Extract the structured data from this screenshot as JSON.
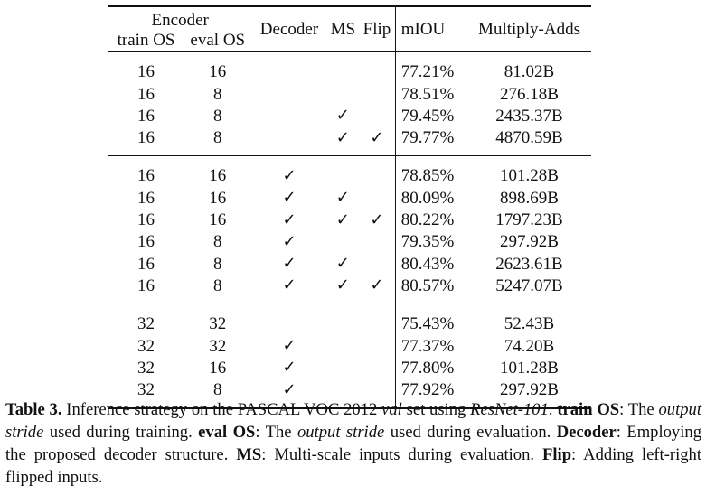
{
  "table": {
    "headers": {
      "encoder": "Encoder",
      "train_os": "train OS",
      "eval_os": "eval OS",
      "decoder": "Decoder",
      "ms": "MS",
      "flip": "Flip",
      "miou": "mIOU",
      "madds": "Multiply-Adds"
    },
    "check_symbol": "✓",
    "groups": [
      [
        {
          "train_os": "16",
          "eval_os": "16",
          "decoder": false,
          "ms": false,
          "flip": false,
          "miou": "77.21%",
          "madds": "81.02B"
        },
        {
          "train_os": "16",
          "eval_os": "8",
          "decoder": false,
          "ms": false,
          "flip": false,
          "miou": "78.51%",
          "madds": "276.18B"
        },
        {
          "train_os": "16",
          "eval_os": "8",
          "decoder": false,
          "ms": true,
          "flip": false,
          "miou": "79.45%",
          "madds": "2435.37B"
        },
        {
          "train_os": "16",
          "eval_os": "8",
          "decoder": false,
          "ms": true,
          "flip": true,
          "miou": "79.77%",
          "madds": "4870.59B"
        }
      ],
      [
        {
          "train_os": "16",
          "eval_os": "16",
          "decoder": true,
          "ms": false,
          "flip": false,
          "miou": "78.85%",
          "madds": "101.28B"
        },
        {
          "train_os": "16",
          "eval_os": "16",
          "decoder": true,
          "ms": true,
          "flip": false,
          "miou": "80.09%",
          "madds": "898.69B"
        },
        {
          "train_os": "16",
          "eval_os": "16",
          "decoder": true,
          "ms": true,
          "flip": true,
          "miou": "80.22%",
          "madds": "1797.23B"
        },
        {
          "train_os": "16",
          "eval_os": "8",
          "decoder": true,
          "ms": false,
          "flip": false,
          "miou": "79.35%",
          "madds": "297.92B"
        },
        {
          "train_os": "16",
          "eval_os": "8",
          "decoder": true,
          "ms": true,
          "flip": false,
          "miou": "80.43%",
          "madds": "2623.61B"
        },
        {
          "train_os": "16",
          "eval_os": "8",
          "decoder": true,
          "ms": true,
          "flip": true,
          "miou": "80.57%",
          "madds": "5247.07B"
        }
      ],
      [
        {
          "train_os": "32",
          "eval_os": "32",
          "decoder": false,
          "ms": false,
          "flip": false,
          "miou": "75.43%",
          "madds": "52.43B"
        },
        {
          "train_os": "32",
          "eval_os": "32",
          "decoder": true,
          "ms": false,
          "flip": false,
          "miou": "77.37%",
          "madds": "74.20B"
        },
        {
          "train_os": "32",
          "eval_os": "16",
          "decoder": true,
          "ms": false,
          "flip": false,
          "miou": "77.80%",
          "madds": "101.28B"
        },
        {
          "train_os": "32",
          "eval_os": "8",
          "decoder": true,
          "ms": false,
          "flip": false,
          "miou": "77.92%",
          "madds": "297.92B"
        }
      ]
    ]
  },
  "caption": {
    "label": "Table 3.",
    "text_1": " Inference strategy on the PASCAL VOC 2012 ",
    "val": "val",
    "text_2": " set using ",
    "model": "ResNet-101",
    "text_3": ". ",
    "train_os_term": "train OS",
    "text_4": ": The ",
    "output_stride_1": "output stride",
    "text_5": " used during training. ",
    "eval_os_term": "eval OS",
    "text_6": ": The ",
    "output_stride_2": "output stride",
    "text_7": " used during evaluation. ",
    "decoder_term": "Decoder",
    "text_8": ": Employing the proposed decoder structure. ",
    "ms_term": "MS",
    "text_9": ": Multi-scale inputs during evaluation. ",
    "flip_term": "Flip",
    "text_10": ": Adding left-right flipped inputs."
  }
}
